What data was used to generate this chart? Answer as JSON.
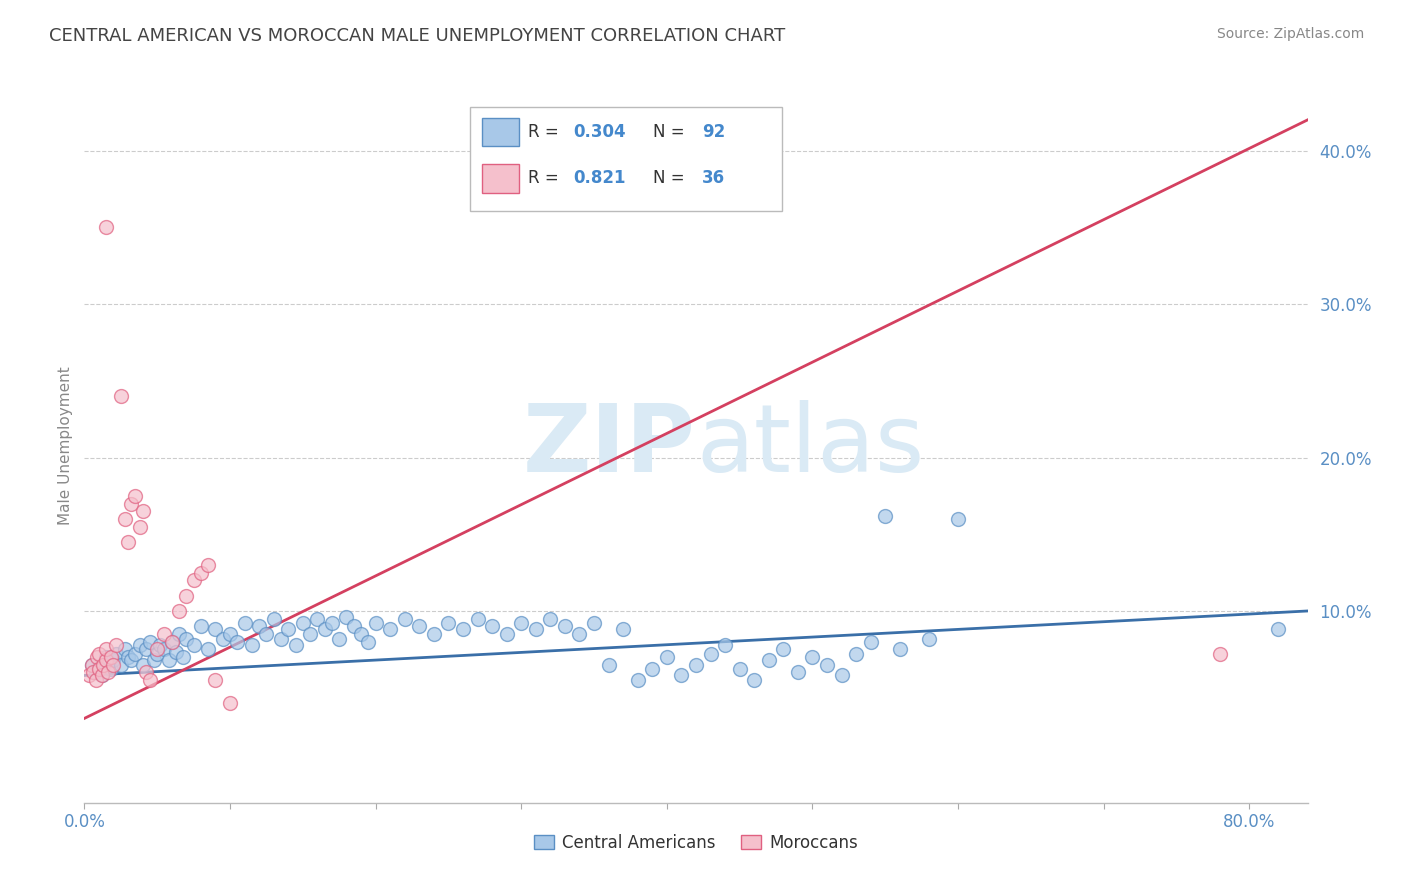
{
  "title": "CENTRAL AMERICAN VS MOROCCAN MALE UNEMPLOYMENT CORRELATION CHART",
  "source": "Source: ZipAtlas.com",
  "ylabel": "Male Unemployment",
  "xlim": [
    0.0,
    0.84
  ],
  "ylim": [
    -0.025,
    0.44
  ],
  "ytick_vals": [
    0.0,
    0.1,
    0.2,
    0.3,
    0.4
  ],
  "ytick_labels": [
    "",
    "10.0%",
    "20.0%",
    "30.0%",
    "40.0%"
  ],
  "xtick_vals": [
    0.0,
    0.1,
    0.2,
    0.3,
    0.4,
    0.5,
    0.6,
    0.7,
    0.8
  ],
  "xtick_labels": [
    "0.0%",
    "",
    "",
    "",
    "",
    "",
    "",
    "",
    "80.0%"
  ],
  "blue_color": "#a8c8e8",
  "blue_edge_color": "#5a8fc4",
  "pink_color": "#f5c0cc",
  "pink_edge_color": "#e06080",
  "blue_line_color": "#3a6fa8",
  "pink_line_color": "#d44060",
  "grid_color": "#cccccc",
  "axis_tick_color": "#5a8fc4",
  "title_color": "#444444",
  "source_color": "#888888",
  "ylabel_color": "#888888",
  "watermark_color": "#daeaf5",
  "legend_text_color": "#333333",
  "legend_val_color": "#4488cc",
  "legend_pink_val_color": "#e06080",
  "blue_line_x": [
    0.0,
    0.84
  ],
  "blue_line_y": [
    0.058,
    0.1
  ],
  "pink_line_x": [
    0.0,
    0.84
  ],
  "pink_line_y": [
    0.03,
    0.42
  ],
  "blue_x": [
    0.005,
    0.008,
    0.01,
    0.012,
    0.015,
    0.018,
    0.02,
    0.022,
    0.025,
    0.028,
    0.03,
    0.032,
    0.035,
    0.038,
    0.04,
    0.042,
    0.045,
    0.048,
    0.05,
    0.052,
    0.055,
    0.058,
    0.06,
    0.063,
    0.065,
    0.068,
    0.07,
    0.075,
    0.08,
    0.085,
    0.09,
    0.095,
    0.1,
    0.105,
    0.11,
    0.115,
    0.12,
    0.125,
    0.13,
    0.135,
    0.14,
    0.145,
    0.15,
    0.155,
    0.16,
    0.165,
    0.17,
    0.175,
    0.18,
    0.185,
    0.19,
    0.195,
    0.2,
    0.21,
    0.22,
    0.23,
    0.24,
    0.25,
    0.26,
    0.27,
    0.28,
    0.29,
    0.3,
    0.31,
    0.32,
    0.33,
    0.34,
    0.35,
    0.36,
    0.37,
    0.38,
    0.39,
    0.4,
    0.41,
    0.42,
    0.43,
    0.44,
    0.45,
    0.46,
    0.47,
    0.48,
    0.49,
    0.5,
    0.51,
    0.52,
    0.53,
    0.54,
    0.55,
    0.56,
    0.58,
    0.6,
    0.82
  ],
  "blue_y": [
    0.065,
    0.06,
    0.063,
    0.058,
    0.07,
    0.062,
    0.068,
    0.072,
    0.065,
    0.075,
    0.07,
    0.068,
    0.072,
    0.078,
    0.065,
    0.075,
    0.08,
    0.068,
    0.072,
    0.078,
    0.075,
    0.068,
    0.08,
    0.073,
    0.085,
    0.07,
    0.082,
    0.078,
    0.09,
    0.075,
    0.088,
    0.082,
    0.085,
    0.08,
    0.092,
    0.078,
    0.09,
    0.085,
    0.095,
    0.082,
    0.088,
    0.078,
    0.092,
    0.085,
    0.095,
    0.088,
    0.092,
    0.082,
    0.096,
    0.09,
    0.085,
    0.08,
    0.092,
    0.088,
    0.095,
    0.09,
    0.085,
    0.092,
    0.088,
    0.095,
    0.09,
    0.085,
    0.092,
    0.088,
    0.095,
    0.09,
    0.085,
    0.092,
    0.065,
    0.088,
    0.055,
    0.062,
    0.07,
    0.058,
    0.065,
    0.072,
    0.078,
    0.062,
    0.055,
    0.068,
    0.075,
    0.06,
    0.07,
    0.065,
    0.058,
    0.072,
    0.08,
    0.162,
    0.075,
    0.082,
    0.16,
    0.088
  ],
  "pink_x": [
    0.003,
    0.005,
    0.006,
    0.008,
    0.009,
    0.01,
    0.01,
    0.012,
    0.013,
    0.015,
    0.015,
    0.016,
    0.018,
    0.02,
    0.022,
    0.025,
    0.028,
    0.03,
    0.032,
    0.035,
    0.038,
    0.04,
    0.042,
    0.045,
    0.05,
    0.055,
    0.06,
    0.065,
    0.07,
    0.075,
    0.08,
    0.085,
    0.09,
    0.1,
    0.78,
    0.015
  ],
  "pink_y": [
    0.058,
    0.065,
    0.06,
    0.055,
    0.07,
    0.062,
    0.072,
    0.058,
    0.065,
    0.068,
    0.075,
    0.06,
    0.07,
    0.065,
    0.078,
    0.24,
    0.16,
    0.145,
    0.17,
    0.175,
    0.155,
    0.165,
    0.06,
    0.055,
    0.075,
    0.085,
    0.08,
    0.1,
    0.11,
    0.12,
    0.125,
    0.13,
    0.055,
    0.04,
    0.072,
    0.35
  ]
}
